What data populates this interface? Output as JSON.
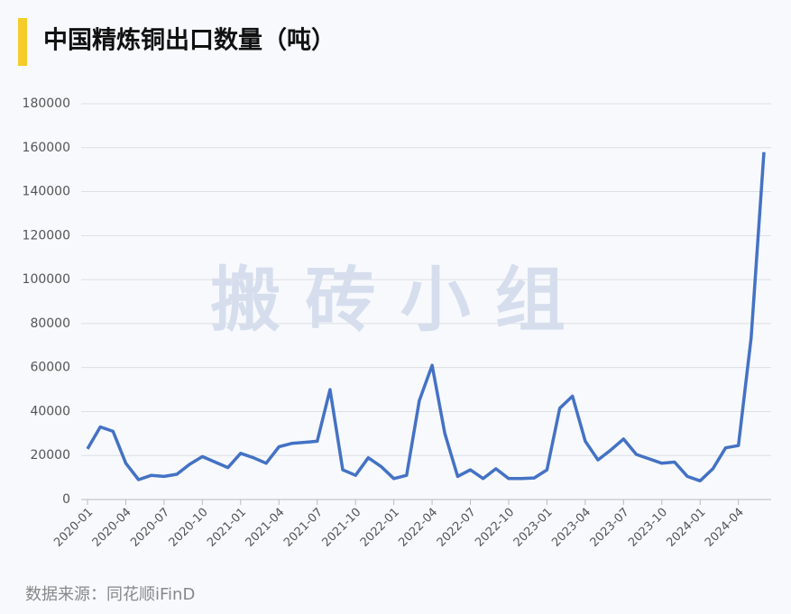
{
  "chart_data": {
    "type": "line",
    "title": "中国精炼铜出口数量（吨）",
    "watermark": "搬 砖 小 组",
    "source": "数据来源：同花顺iFinD",
    "categories": [
      "2020-01",
      null,
      null,
      "2020-04",
      null,
      null,
      "2020-07",
      null,
      null,
      "2020-10",
      null,
      null,
      "2021-01",
      null,
      null,
      "2021-04",
      null,
      null,
      "2021-07",
      null,
      null,
      "2021-10",
      null,
      null,
      "2022-01",
      null,
      null,
      "2022-04",
      null,
      null,
      "2022-07",
      null,
      null,
      "2022-10",
      null,
      null,
      "2023-01",
      null,
      null,
      "2023-04",
      null,
      null,
      "2023-07",
      null,
      null,
      "2023-10",
      null,
      null,
      "2024-01",
      null,
      null,
      "2024-04",
      null,
      null
    ],
    "series": [
      {
        "color": "#4472c4",
        "values": [
          23000,
          33000,
          31000,
          16500,
          9000,
          11000,
          10500,
          11500,
          16000,
          19500,
          17000,
          14500,
          21000,
          19000,
          16500,
          24000,
          25500,
          26000,
          26500,
          50000,
          13500,
          11000,
          19000,
          15000,
          9500,
          11000,
          45000,
          61000,
          30000,
          10500,
          13500,
          9500,
          14000,
          9500,
          9500,
          9800,
          13500,
          41500,
          47000,
          26500,
          18000,
          22500,
          27500,
          20500,
          18500,
          16500,
          17000,
          10500,
          8500,
          14000,
          23500,
          24500,
          73500,
          158000
        ]
      }
    ],
    "ylim": [
      0,
      180000
    ],
    "yticks": [
      0,
      20000,
      40000,
      60000,
      80000,
      100000,
      120000,
      140000,
      160000,
      180000
    ],
    "grid": true
  }
}
